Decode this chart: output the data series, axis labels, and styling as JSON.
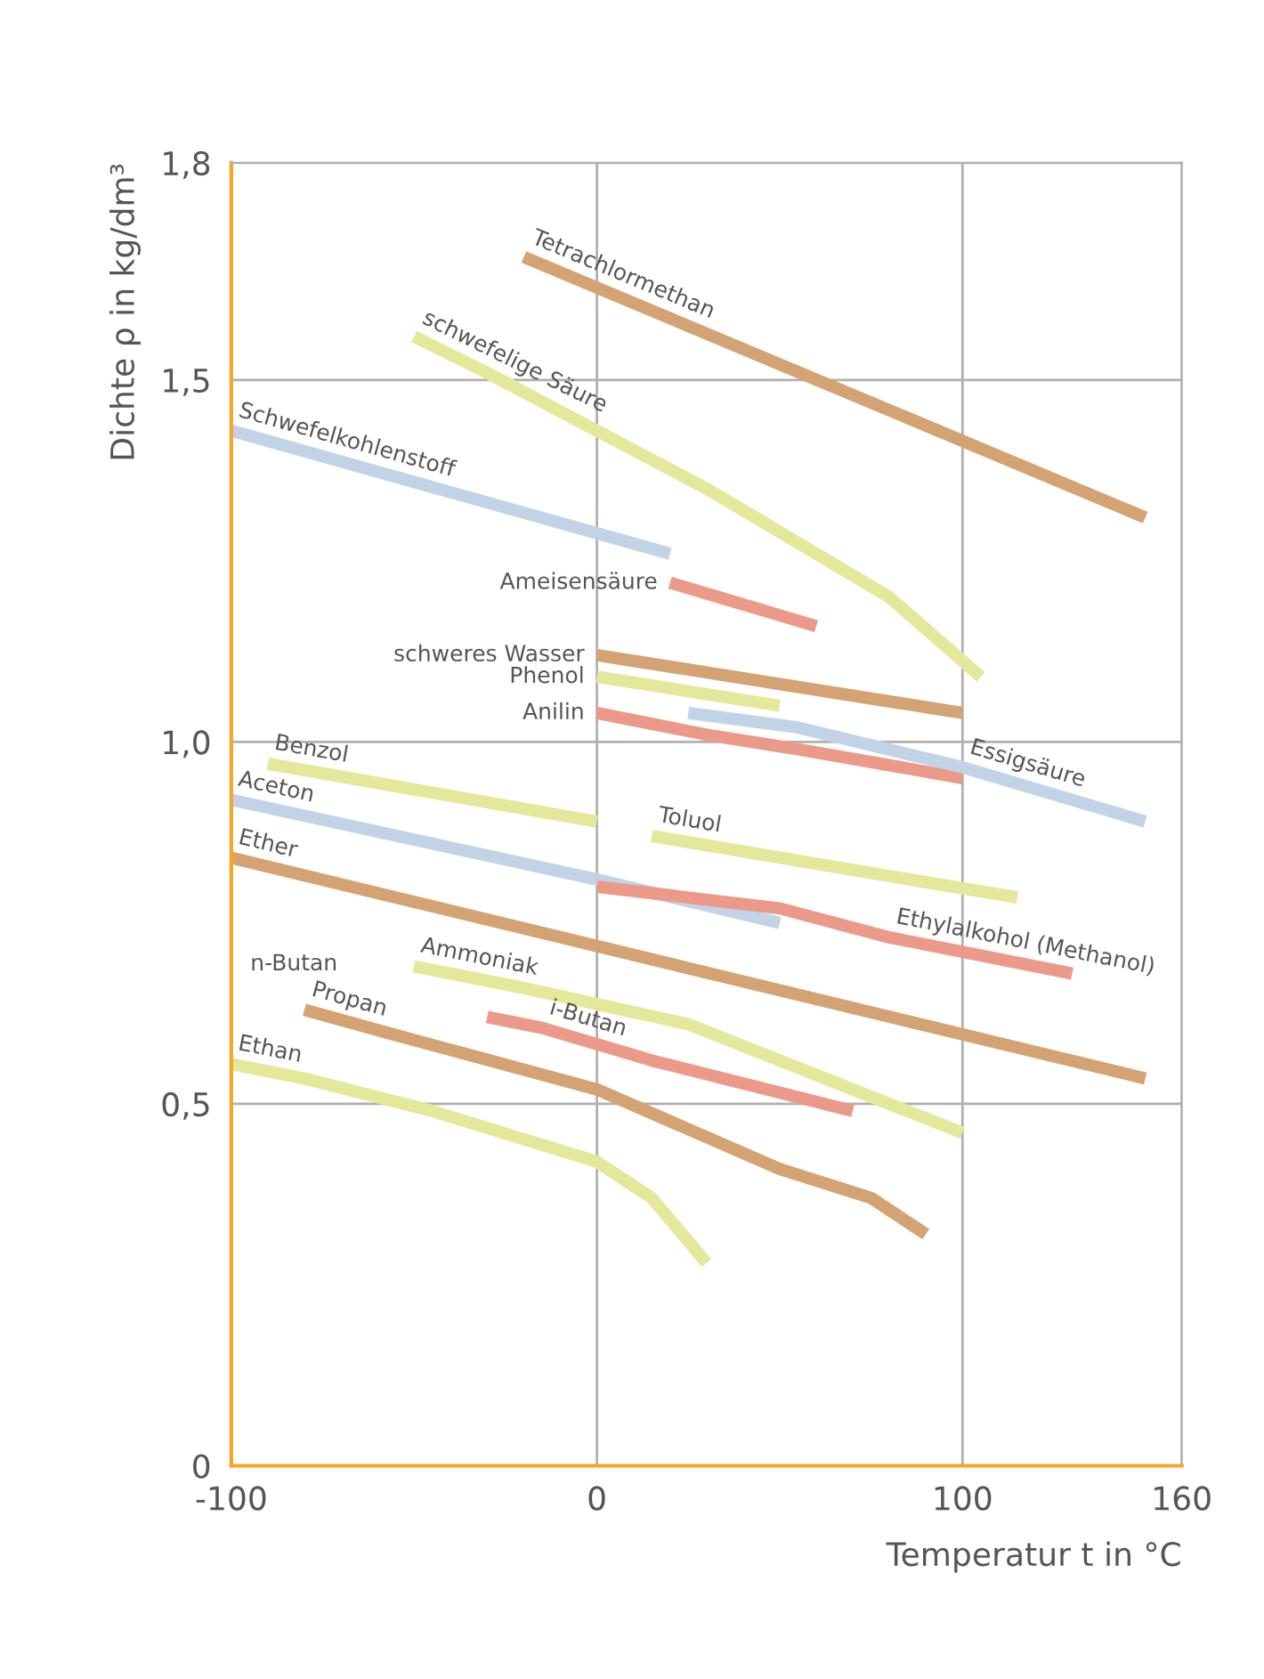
{
  "chart_data": {
    "type": "line",
    "xlabel": "Temperatur t in °C",
    "ylabel": "Dichte ρ in kg/dm³",
    "xlim": [
      -100,
      160
    ],
    "ylim": [
      0,
      1.8
    ],
    "xticks": [
      -100,
      0,
      100,
      160
    ],
    "yticks": [
      0,
      {
        "value": 0.5,
        "label": "0,5"
      },
      {
        "value": 1.0,
        "label": "1,0"
      },
      {
        "value": 1.5,
        "label": "1,5"
      },
      {
        "value": 1.8,
        "label": "1,8"
      }
    ],
    "grid": true,
    "legend": false,
    "marker": "none",
    "line_style": "solid",
    "series": [
      {
        "name": "Tetrachlormethan",
        "color": "#d4a373",
        "x": [
          -20,
          150
        ],
        "values": [
          1.67,
          1.31
        ]
      },
      {
        "name": "schwefelige Säure",
        "color": "#e3e89a",
        "x": [
          -50,
          -30,
          0,
          30,
          60,
          80,
          105
        ],
        "values": [
          1.56,
          1.51,
          1.43,
          1.35,
          1.26,
          1.2,
          1.09
        ]
      },
      {
        "name": "Schwefelkohlenstoff",
        "color": "#c3d3e6",
        "x": [
          -100,
          20
        ],
        "values": [
          1.43,
          1.26
        ]
      },
      {
        "name": "Ameisensäure",
        "color": "#eb9a8a",
        "x": [
          20,
          60
        ],
        "values": [
          1.22,
          1.16
        ]
      },
      {
        "name": "schweres Wasser",
        "color": "#d4a373",
        "x": [
          0,
          100
        ],
        "values": [
          1.12,
          1.04
        ]
      },
      {
        "name": "Phenol",
        "color": "#e3e89a",
        "x": [
          0,
          50
        ],
        "values": [
          1.09,
          1.05
        ]
      },
      {
        "name": "Anilin",
        "color": "#eb9a8a",
        "x": [
          0,
          30,
          55,
          100
        ],
        "values": [
          1.04,
          1.01,
          0.99,
          0.95
        ]
      },
      {
        "name": "Essigsäure",
        "color": "#c3d3e6",
        "x": [
          25,
          55,
          100,
          150
        ],
        "values": [
          1.04,
          1.02,
          0.965,
          0.89
        ]
      },
      {
        "name": "Benzol",
        "color": "#e3e89a",
        "x": [
          -90,
          0
        ],
        "values": [
          0.97,
          0.89
        ]
      },
      {
        "name": "Aceton",
        "color": "#c3d3e6",
        "x": [
          -100,
          0,
          50
        ],
        "values": [
          0.92,
          0.81,
          0.75
        ]
      },
      {
        "name": "Toluol",
        "color": "#e3e89a",
        "x": [
          15,
          115
        ],
        "values": [
          0.87,
          0.785
        ]
      },
      {
        "name": "Ether",
        "color": "#d4a373",
        "x": [
          -100,
          150
        ],
        "values": [
          0.84,
          0.535
        ]
      },
      {
        "name": "Ethylalkohol (Methanol)",
        "color": "#eb9a8a",
        "x": [
          0,
          50,
          80,
          130
        ],
        "values": [
          0.8,
          0.77,
          0.73,
          0.68
        ]
      },
      {
        "name": "Ammoniak",
        "color": "#e3e89a",
        "x": [
          -50,
          -20,
          25,
          70,
          100
        ],
        "values": [
          0.69,
          0.66,
          0.61,
          0.52,
          0.46
        ]
      },
      {
        "name": "Propan",
        "color": "#d4a373",
        "x": [
          -80,
          -55,
          0,
          50,
          75,
          90
        ],
        "values": [
          0.63,
          0.595,
          0.52,
          0.41,
          0.37,
          0.32
        ]
      },
      {
        "name": "i-Butan",
        "color": "#eb9a8a",
        "x": [
          -30,
          -15,
          15,
          70
        ],
        "values": [
          0.62,
          0.605,
          0.56,
          0.49
        ]
      },
      {
        "name": "Ethan",
        "color": "#e3e89a",
        "x": [
          -100,
          -80,
          -45,
          0,
          15,
          30
        ],
        "values": [
          0.555,
          0.535,
          0.49,
          0.42,
          0.37,
          0.28
        ]
      }
    ],
    "annotations": [
      "n-Butan"
    ]
  }
}
